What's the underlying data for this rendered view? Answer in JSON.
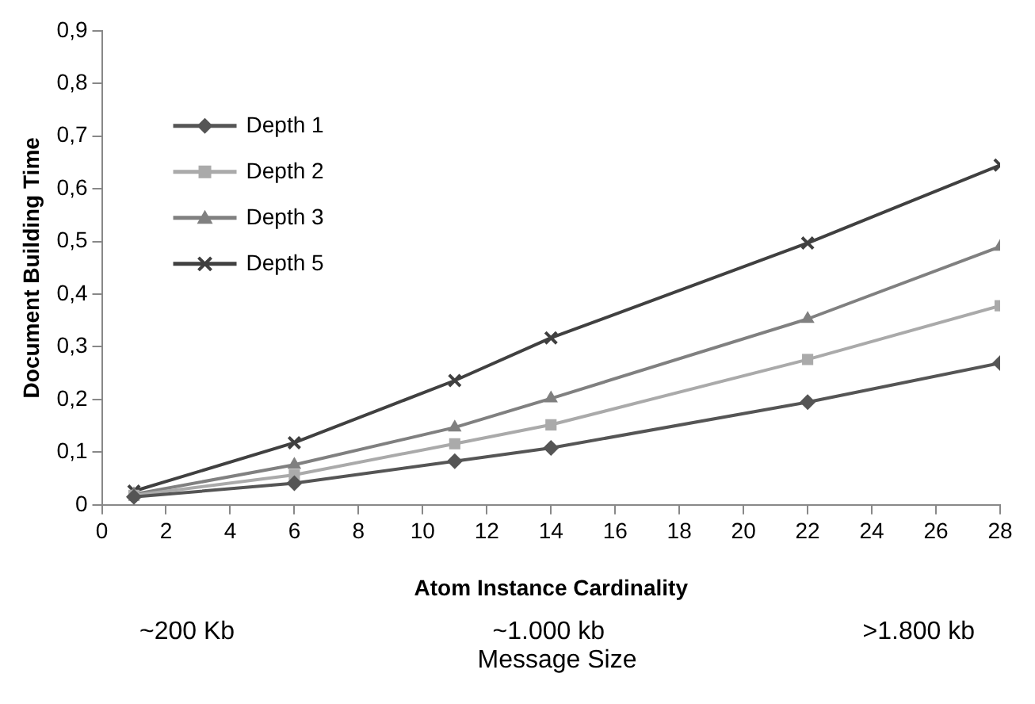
{
  "chart_data": {
    "type": "line",
    "xlabel": "Atom Instance Cardinality",
    "ylabel": "Document Building Time",
    "x": [
      1,
      6,
      11,
      14,
      22,
      28
    ],
    "series": [
      {
        "name": "Depth 1",
        "color": "#555555",
        "marker": "diamond",
        "values": [
          0.015,
          0.041,
          0.083,
          0.108,
          0.195,
          0.269
        ]
      },
      {
        "name": "Depth 2",
        "color": "#aaaaaa",
        "marker": "square",
        "values": [
          0.018,
          0.057,
          0.116,
          0.152,
          0.276,
          0.378
        ]
      },
      {
        "name": "Depth 3",
        "color": "#808080",
        "marker": "triangle",
        "values": [
          0.02,
          0.076,
          0.147,
          0.202,
          0.353,
          0.49
        ]
      },
      {
        "name": "Depth 5",
        "color": "#404040",
        "marker": "cross",
        "values": [
          0.026,
          0.118,
          0.236,
          0.317,
          0.497,
          0.645
        ]
      }
    ],
    "xlim": [
      0,
      28
    ],
    "xticks": [
      0,
      2,
      4,
      6,
      8,
      10,
      12,
      14,
      16,
      18,
      20,
      22,
      24,
      26,
      28
    ],
    "ylim": [
      0,
      0.9
    ],
    "yticks": [
      0,
      {
        "value": 0.1,
        "label": "0,1"
      },
      {
        "value": 0.2,
        "label": "0,2"
      },
      {
        "value": 0.3,
        "label": "0,3"
      },
      {
        "value": 0.4,
        "label": "0,4"
      },
      {
        "value": 0.5,
        "label": "0,5"
      },
      {
        "value": 0.6,
        "label": "0,6"
      },
      {
        "value": 0.7,
        "label": "0,7"
      },
      {
        "value": 0.8,
        "label": "0,8"
      },
      {
        "value": 0.9,
        "label": "0,9"
      }
    ],
    "grid": false,
    "legend": "top left",
    "line_style": "solid",
    "annotations": [
      "~200 Kb",
      "~1.000 kb",
      ">1.800 kb",
      "Message Size"
    ]
  }
}
